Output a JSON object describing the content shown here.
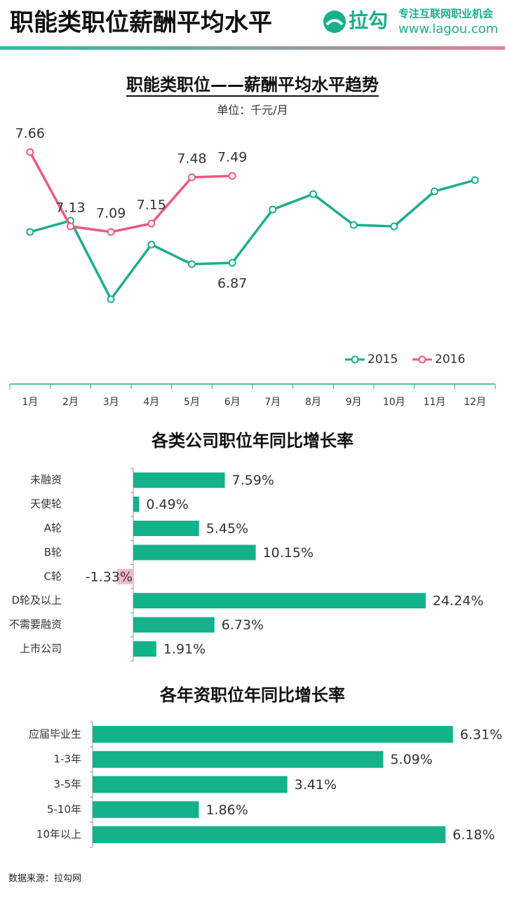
{
  "header": {
    "title": "职能类职位薪酬平均水平",
    "logo": "拉勾",
    "slogan": "专注互联网职业机会",
    "url": "www.lagou.com"
  },
  "footer": "数据来源：拉勾网",
  "chart_data": [
    {
      "type": "line",
      "title": "职能类职位——薪酬平均水平趋势",
      "subtitle": "单位：千元/月",
      "categories": [
        "1月",
        "2月",
        "3月",
        "4月",
        "5月",
        "6月",
        "7月",
        "8月",
        "9月",
        "10月",
        "11月",
        "12月"
      ],
      "ylim": [
        6.4,
        7.8
      ],
      "legend": "bottom-right",
      "series": [
        {
          "name": "2015",
          "color": "#1aae8c",
          "values": [
            7.09,
            7.17,
            6.61,
            7.0,
            6.86,
            6.87,
            7.25,
            7.36,
            7.14,
            7.13,
            7.38,
            7.46
          ],
          "value_labels": [
            null,
            null,
            null,
            null,
            null,
            "6.87",
            null,
            null,
            null,
            null,
            null,
            null
          ]
        },
        {
          "name": "2016",
          "color": "#ee5a7e",
          "values": [
            7.66,
            7.13,
            7.09,
            7.15,
            7.48,
            7.49,
            null,
            null,
            null,
            null,
            null,
            null
          ]
        }
      ]
    },
    {
      "type": "hbar",
      "title": "各类公司职位年同比增长率",
      "categories": [
        "未融资",
        "天使轮",
        "A轮",
        "B轮",
        "C轮",
        "D轮及以上",
        "不需要融资",
        "上市公司"
      ],
      "values": [
        7.59,
        0.49,
        5.45,
        10.15,
        -1.33,
        24.24,
        6.73,
        1.91
      ],
      "value_labels": [
        "7.59%",
        "0.49%",
        "5.45%",
        "10.15%",
        "-1.33%",
        "24.24%",
        "6.73%",
        "1.91%"
      ],
      "xlim": [
        -5,
        30
      ],
      "color": "#13b28b",
      "negative_color": "#f6b9c7"
    },
    {
      "type": "hbar",
      "title": "各年资职位年同比增长率",
      "categories": [
        "应届毕业生",
        "1-3年",
        "3-5年",
        "5-10年",
        "10年以上"
      ],
      "values": [
        6.31,
        5.09,
        3.41,
        1.86,
        6.18
      ],
      "value_labels": [
        "6.31%",
        "5.09%",
        "3.41%",
        "1.86%",
        "6.18%"
      ],
      "xlim": [
        0,
        7
      ],
      "color": "#13b28b",
      "negative_color": "#f6b9c7"
    }
  ]
}
